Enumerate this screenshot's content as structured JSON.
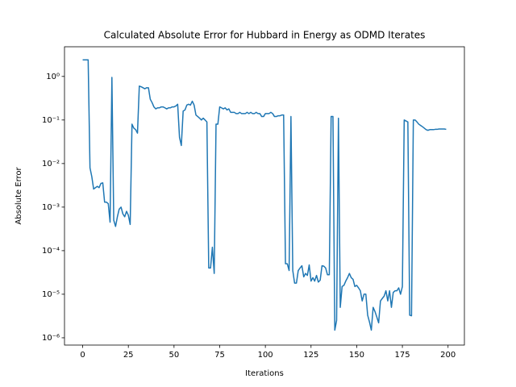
{
  "chart_data": {
    "type": "line",
    "title": "Calculated Absolute Error for Hubbard in Energy as ODMD Iterates",
    "xlabel": "Iterations",
    "ylabel": "Absolute Error",
    "color": "#1f77b4",
    "yscale": "log",
    "xlim": [
      -9.95,
      208.95
    ],
    "xticks": [
      0,
      25,
      50,
      75,
      100,
      125,
      150,
      175,
      200
    ],
    "ylim": [
      6.8e-07,
      4.8
    ],
    "yticks": [
      {
        "value": 1e-06,
        "label": "10⁻⁶"
      },
      {
        "value": 1e-05,
        "label": "10⁻⁵"
      },
      {
        "value": 0.0001,
        "label": "10⁻⁴"
      },
      {
        "value": 0.001,
        "label": "10⁻³"
      },
      {
        "value": 0.01,
        "label": "10⁻²"
      },
      {
        "value": 0.1,
        "label": "10⁻¹"
      },
      {
        "value": 1,
        "label": "10⁰"
      }
    ],
    "x": [
      0,
      1,
      2,
      3,
      4,
      5,
      6,
      7,
      8,
      9,
      10,
      11,
      12,
      13,
      14,
      15,
      16,
      17,
      18,
      19,
      20,
      21,
      22,
      23,
      24,
      25,
      26,
      27,
      28,
      29,
      30,
      31,
      32,
      33,
      34,
      35,
      36,
      37,
      38,
      39,
      40,
      41,
      42,
      43,
      44,
      45,
      46,
      47,
      48,
      49,
      50,
      51,
      52,
      53,
      54,
      55,
      56,
      57,
      58,
      59,
      60,
      61,
      62,
      63,
      64,
      65,
      66,
      67,
      68,
      69,
      70,
      71,
      72,
      73,
      74,
      75,
      76,
      77,
      78,
      79,
      80,
      81,
      82,
      83,
      84,
      85,
      86,
      87,
      88,
      89,
      90,
      91,
      92,
      93,
      94,
      95,
      96,
      97,
      98,
      99,
      100,
      101,
      102,
      103,
      104,
      105,
      106,
      107,
      108,
      109,
      110,
      111,
      112,
      113,
      114,
      115,
      116,
      117,
      118,
      119,
      120,
      121,
      122,
      123,
      124,
      125,
      126,
      127,
      128,
      129,
      130,
      131,
      132,
      133,
      134,
      135,
      136,
      137,
      138,
      139,
      140,
      141,
      142,
      143,
      144,
      145,
      146,
      147,
      148,
      149,
      150,
      151,
      152,
      153,
      154,
      155,
      156,
      157,
      158,
      159,
      160,
      161,
      162,
      163,
      164,
      165,
      166,
      167,
      168,
      169,
      170,
      171,
      172,
      173,
      174,
      175,
      176,
      177,
      178,
      179,
      180,
      181,
      182,
      183,
      184,
      185,
      186,
      187,
      188,
      189,
      190,
      191,
      192,
      193,
      194,
      195,
      196,
      197,
      198,
      199
    ],
    "values": [
      2.4,
      2.4,
      2.4,
      2.4,
      0.008,
      0.005,
      0.0026,
      0.0028,
      0.003,
      0.0028,
      0.0035,
      0.0036,
      0.0013,
      0.0013,
      0.0012,
      0.00045,
      0.95,
      0.0005,
      0.00036,
      0.0006,
      0.0009,
      0.001,
      0.0007,
      0.0006,
      0.0008,
      0.00065,
      0.0004,
      0.08,
      0.065,
      0.06,
      0.05,
      0.6,
      0.58,
      0.55,
      0.52,
      0.55,
      0.55,
      0.3,
      0.25,
      0.2,
      0.18,
      0.19,
      0.19,
      0.2,
      0.2,
      0.19,
      0.18,
      0.19,
      0.19,
      0.2,
      0.2,
      0.21,
      0.23,
      0.04,
      0.026,
      0.16,
      0.17,
      0.22,
      0.23,
      0.22,
      0.27,
      0.22,
      0.13,
      0.12,
      0.11,
      0.1,
      0.11,
      0.1,
      0.09,
      4e-05,
      4e-05,
      0.00012,
      3e-05,
      0.08,
      0.08,
      0.2,
      0.19,
      0.18,
      0.19,
      0.17,
      0.18,
      0.15,
      0.15,
      0.15,
      0.14,
      0.14,
      0.15,
      0.14,
      0.14,
      0.14,
      0.15,
      0.14,
      0.15,
      0.14,
      0.14,
      0.15,
      0.14,
      0.14,
      0.12,
      0.12,
      0.14,
      0.14,
      0.14,
      0.15,
      0.14,
      0.12,
      0.12,
      0.125,
      0.125,
      0.13,
      0.13,
      5e-05,
      5e-05,
      3.5e-05,
      0.12,
      3.5e-05,
      1.8e-05,
      1.8e-05,
      3.5e-05,
      4e-05,
      4.5e-05,
      2.5e-05,
      3e-05,
      2.7e-05,
      4.7e-05,
      2e-05,
      2.4e-05,
      2e-05,
      2.7e-05,
      1.9e-05,
      2.1e-05,
      4.5e-05,
      4.4e-05,
      4e-05,
      2.8e-05,
      2.8e-05,
      0.12,
      0.12,
      1.5e-06,
      2.5e-06,
      0.11,
      5e-06,
      1.5e-05,
      1.6e-05,
      2e-05,
      2.4e-05,
      3e-05,
      2.4e-05,
      2.2e-05,
      1.5e-05,
      1.6e-05,
      1.4e-05,
      1.2e-05,
      7e-06,
      1e-05,
      1e-05,
      3.3e-06,
      2.3e-06,
      1.5e-06,
      5e-06,
      4e-06,
      3e-06,
      2.2e-06,
      7e-06,
      8e-06,
      9e-06,
      1.2e-05,
      7e-06,
      1.2e-05,
      5e-06,
      1.1e-05,
      1.2e-05,
      1.2e-05,
      1.4e-05,
      1e-05,
      1.5e-05,
      0.1,
      0.095,
      0.09,
      3.3e-06,
      3.2e-06,
      0.1,
      0.1,
      0.09,
      0.08,
      0.075,
      0.07,
      0.065,
      0.06,
      0.058,
      0.06,
      0.06,
      0.06,
      0.061,
      0.061,
      0.062,
      0.062,
      0.062,
      0.062,
      0.061
    ]
  }
}
